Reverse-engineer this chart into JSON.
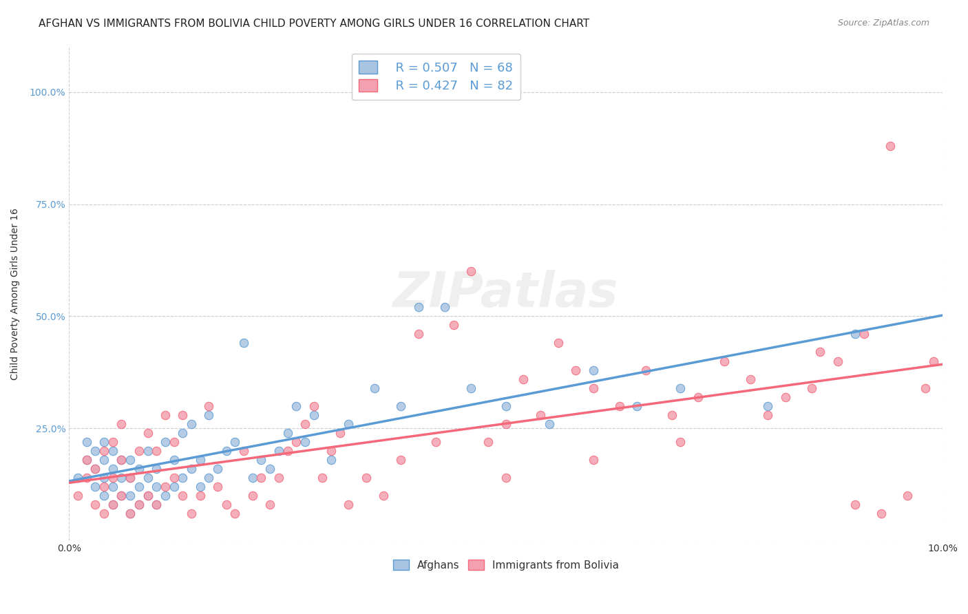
{
  "title": "AFGHAN VS IMMIGRANTS FROM BOLIVIA CHILD POVERTY AMONG GIRLS UNDER 16 CORRELATION CHART",
  "source": "Source: ZipAtlas.com",
  "xlabel": "",
  "ylabel": "Child Poverty Among Girls Under 16",
  "xlim": [
    0.0,
    0.1
  ],
  "ylim": [
    0.0,
    1.1
  ],
  "yticks": [
    0.0,
    0.25,
    0.5,
    0.75,
    1.0
  ],
  "ytick_labels": [
    "",
    "25.0%",
    "50.0%",
    "75.0%",
    "100.0%"
  ],
  "xtick_labels": [
    "0.0%",
    "10.0%"
  ],
  "legend_title": "",
  "afghan_R": "R = 0.507",
  "afghan_N": "N = 68",
  "bolivia_R": "R = 0.427",
  "bolivia_N": "N = 82",
  "afghan_color": "#a8c4e0",
  "bolivia_color": "#f4a0b0",
  "afghan_line_color": "#5b9bd5",
  "bolivia_line_color": "#f4687a",
  "background_color": "#ffffff",
  "watermark_text": "ZIPatlas",
  "title_fontsize": 11,
  "axis_label_fontsize": 10,
  "tick_fontsize": 10,
  "afghans_scatter_x": [
    0.001,
    0.002,
    0.002,
    0.003,
    0.003,
    0.003,
    0.004,
    0.004,
    0.004,
    0.004,
    0.005,
    0.005,
    0.005,
    0.005,
    0.006,
    0.006,
    0.006,
    0.007,
    0.007,
    0.007,
    0.007,
    0.008,
    0.008,
    0.008,
    0.009,
    0.009,
    0.009,
    0.01,
    0.01,
    0.01,
    0.011,
    0.011,
    0.012,
    0.012,
    0.013,
    0.013,
    0.014,
    0.014,
    0.015,
    0.015,
    0.016,
    0.016,
    0.017,
    0.018,
    0.019,
    0.02,
    0.021,
    0.022,
    0.023,
    0.024,
    0.025,
    0.026,
    0.027,
    0.028,
    0.03,
    0.032,
    0.035,
    0.038,
    0.04,
    0.043,
    0.046,
    0.05,
    0.055,
    0.06,
    0.065,
    0.07,
    0.08,
    0.09
  ],
  "afghans_scatter_y": [
    0.14,
    0.18,
    0.22,
    0.12,
    0.16,
    0.2,
    0.1,
    0.14,
    0.18,
    0.22,
    0.08,
    0.12,
    0.16,
    0.2,
    0.1,
    0.14,
    0.18,
    0.06,
    0.1,
    0.14,
    0.18,
    0.08,
    0.12,
    0.16,
    0.1,
    0.14,
    0.2,
    0.08,
    0.12,
    0.16,
    0.1,
    0.22,
    0.12,
    0.18,
    0.14,
    0.24,
    0.16,
    0.26,
    0.12,
    0.18,
    0.14,
    0.28,
    0.16,
    0.2,
    0.22,
    0.44,
    0.14,
    0.18,
    0.16,
    0.2,
    0.24,
    0.3,
    0.22,
    0.28,
    0.18,
    0.26,
    0.34,
    0.3,
    0.52,
    0.52,
    0.34,
    0.3,
    0.26,
    0.38,
    0.3,
    0.34,
    0.3,
    0.46
  ],
  "bolivia_scatter_x": [
    0.001,
    0.002,
    0.002,
    0.003,
    0.003,
    0.004,
    0.004,
    0.004,
    0.005,
    0.005,
    0.005,
    0.006,
    0.006,
    0.006,
    0.007,
    0.007,
    0.008,
    0.008,
    0.009,
    0.009,
    0.01,
    0.01,
    0.011,
    0.011,
    0.012,
    0.012,
    0.013,
    0.013,
    0.014,
    0.015,
    0.016,
    0.017,
    0.018,
    0.019,
    0.02,
    0.021,
    0.022,
    0.023,
    0.024,
    0.025,
    0.026,
    0.027,
    0.028,
    0.029,
    0.03,
    0.031,
    0.032,
    0.034,
    0.036,
    0.038,
    0.04,
    0.042,
    0.044,
    0.046,
    0.048,
    0.05,
    0.052,
    0.054,
    0.056,
    0.058,
    0.06,
    0.063,
    0.066,
    0.069,
    0.072,
    0.075,
    0.078,
    0.082,
    0.086,
    0.09,
    0.093,
    0.096,
    0.098,
    0.099,
    0.05,
    0.06,
    0.07,
    0.08,
    0.085,
    0.088,
    0.091,
    0.094
  ],
  "bolivia_scatter_y": [
    0.1,
    0.14,
    0.18,
    0.08,
    0.16,
    0.06,
    0.12,
    0.2,
    0.08,
    0.14,
    0.22,
    0.1,
    0.18,
    0.26,
    0.06,
    0.14,
    0.08,
    0.2,
    0.1,
    0.24,
    0.08,
    0.2,
    0.12,
    0.28,
    0.14,
    0.22,
    0.1,
    0.28,
    0.06,
    0.1,
    0.3,
    0.12,
    0.08,
    0.06,
    0.2,
    0.1,
    0.14,
    0.08,
    0.14,
    0.2,
    0.22,
    0.26,
    0.3,
    0.14,
    0.2,
    0.24,
    0.08,
    0.14,
    0.1,
    0.18,
    0.46,
    0.22,
    0.48,
    0.6,
    0.22,
    0.26,
    0.36,
    0.28,
    0.44,
    0.38,
    0.34,
    0.3,
    0.38,
    0.28,
    0.32,
    0.4,
    0.36,
    0.32,
    0.42,
    0.08,
    0.06,
    0.1,
    0.34,
    0.4,
    0.14,
    0.18,
    0.22,
    0.28,
    0.34,
    0.4,
    0.46,
    0.88
  ]
}
